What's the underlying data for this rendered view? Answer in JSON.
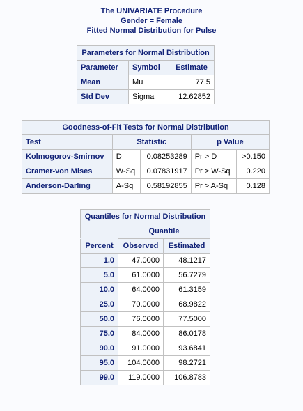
{
  "titles": {
    "line1": "The UNIVARIATE Procedure",
    "line2": "Gender = Female",
    "line3": "Fitted Normal Distribution for Pulse"
  },
  "params": {
    "caption": "Parameters for Normal Distribution",
    "headers": [
      "Parameter",
      "Symbol",
      "Estimate"
    ],
    "rows": [
      {
        "parameter": "Mean",
        "symbol": "Mu",
        "estimate": "77.5"
      },
      {
        "parameter": "Std Dev",
        "symbol": "Sigma",
        "estimate": "12.62852"
      }
    ]
  },
  "gof": {
    "caption": "Goodness-of-Fit Tests for Normal Distribution",
    "headers": {
      "test": "Test",
      "statistic": "Statistic",
      "pvalue": "p Value"
    },
    "rows": [
      {
        "test": "Kolmogorov-Smirnov",
        "stat_sym": "D",
        "stat_val": "0.08253289",
        "p_label": "Pr > D",
        "p_val": ">0.150"
      },
      {
        "test": "Cramer-von Mises",
        "stat_sym": "W-Sq",
        "stat_val": "0.07831917",
        "p_label": "Pr > W-Sq",
        "p_val": "0.220"
      },
      {
        "test": "Anderson-Darling",
        "stat_sym": "A-Sq",
        "stat_val": "0.58192855",
        "p_label": "Pr > A-Sq",
        "p_val": "0.128"
      }
    ]
  },
  "quantiles": {
    "caption": "Quantiles for Normal Distribution",
    "group_header": "Quantile",
    "headers": [
      "Percent",
      "Observed",
      "Estimated"
    ],
    "rows": [
      {
        "percent": "1.0",
        "observed": "47.0000",
        "estimated": "48.1217"
      },
      {
        "percent": "5.0",
        "observed": "61.0000",
        "estimated": "56.7279"
      },
      {
        "percent": "10.0",
        "observed": "64.0000",
        "estimated": "61.3159"
      },
      {
        "percent": "25.0",
        "observed": "70.0000",
        "estimated": "68.9822"
      },
      {
        "percent": "50.0",
        "observed": "76.0000",
        "estimated": "77.5000"
      },
      {
        "percent": "75.0",
        "observed": "84.0000",
        "estimated": "86.0178"
      },
      {
        "percent": "90.0",
        "observed": "91.0000",
        "estimated": "93.6841"
      },
      {
        "percent": "95.0",
        "observed": "104.0000",
        "estimated": "98.2721"
      },
      {
        "percent": "99.0",
        "observed": "119.0000",
        "estimated": "106.8783"
      }
    ]
  }
}
